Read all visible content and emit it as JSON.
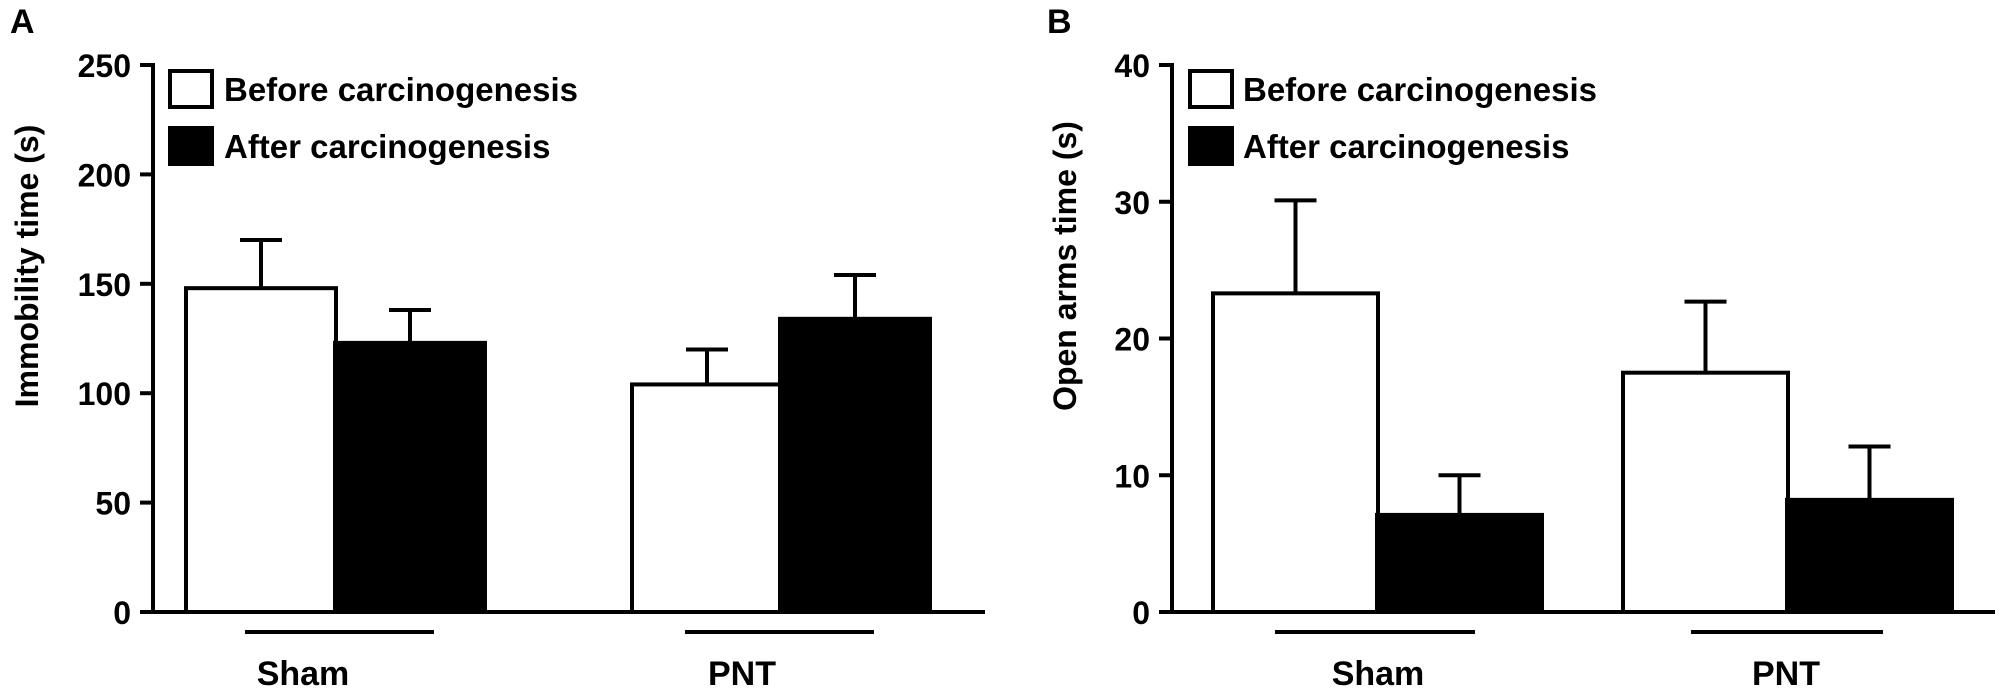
{
  "colors": {
    "before": "#ffffff",
    "after": "#000000",
    "stroke": "#000000"
  },
  "chart_data": [
    {
      "type": "bar",
      "panel_label": "A",
      "title": "",
      "xlabel": "",
      "ylabel": "Immobility time (s)",
      "ylim": [
        0,
        250
      ],
      "yticks": [
        0,
        50,
        100,
        150,
        200,
        250
      ],
      "ytick_labels": [
        "0",
        "50",
        "100",
        "150",
        "200",
        "250"
      ],
      "categories": [
        "Sham",
        "PNT"
      ],
      "legend": {
        "position": "top-left",
        "entries": [
          "Before carcinogenesis",
          "After carcinogenesis"
        ]
      },
      "series": [
        {
          "name": "Before carcinogenesis",
          "values": [
            148,
            104
          ],
          "errors": [
            22,
            16
          ]
        },
        {
          "name": "After carcinogenesis",
          "values": [
            123,
            134
          ],
          "errors": [
            15,
            20
          ]
        }
      ]
    },
    {
      "type": "bar",
      "panel_label": "B",
      "title": "",
      "xlabel": "",
      "ylabel": "Open arms time (s)",
      "ylim": [
        0,
        40
      ],
      "yticks": [
        0,
        10,
        20,
        30,
        40
      ],
      "ytick_labels": [
        "0",
        "10",
        "20",
        "30",
        "40"
      ],
      "categories": [
        "Sham",
        "PNT"
      ],
      "legend": {
        "position": "top-left",
        "entries": [
          "Before carcinogenesis",
          "After carcinogenesis"
        ]
      },
      "series": [
        {
          "name": "Before carcinogenesis",
          "values": [
            23.3,
            17.5
          ],
          "errors": [
            6.8,
            5.2
          ]
        },
        {
          "name": "After carcinogenesis",
          "values": [
            7.1,
            8.2
          ],
          "errors": [
            2.9,
            3.9
          ]
        }
      ]
    }
  ]
}
